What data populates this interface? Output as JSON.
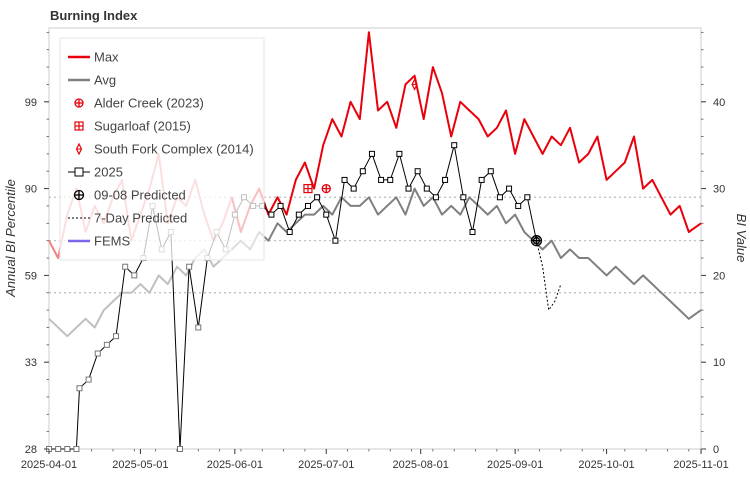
{
  "chart_data": {
    "type": "line",
    "title": "Burning Index",
    "y_left_label": "Annual BI Percentile",
    "y_right_label": "BI Value",
    "x_range": [
      "2025-04-01",
      "2025-11-01"
    ],
    "x_ticks": [
      "2025-04-01",
      "2025-05-01",
      "2025-06-01",
      "2025-07-01",
      "2025-08-01",
      "2025-09-01",
      "2025-10-01",
      "2025-11-01"
    ],
    "y_right_range": [
      0,
      48.5
    ],
    "y_right_ticks": [
      0,
      10,
      20,
      30,
      40
    ],
    "percentile_ticks": [
      {
        "label": "28",
        "bi": 0
      },
      {
        "label": "33",
        "bi": 10
      },
      {
        "label": "59",
        "bi": 20
      },
      {
        "label": "90",
        "bi": 30
      },
      {
        "label": "99",
        "bi": 40
      }
    ],
    "reference_lines_bi": [
      29,
      24,
      18
    ],
    "legend_placement": "top-left",
    "legend": [
      "Max",
      "Avg",
      "Alder Creek (2023)",
      "Sugarloaf (2015)",
      "South Fork Complex (2014)",
      "2025",
      "09-08 Predicted",
      "7-Day Predicted",
      "FEMS"
    ],
    "colors": {
      "max": "#e8000b",
      "max_faded": "#f08080",
      "avg": "#808080",
      "avg_faded": "#c0c0c0",
      "current": "#000000",
      "fems": "#7b68ee",
      "ref_line": "#bbbbbb"
    },
    "series": [
      {
        "name": "Max",
        "x": [
          "2025-04-01",
          "2025-04-04",
          "2025-04-07",
          "2025-04-10",
          "2025-04-13",
          "2025-04-16",
          "2025-04-19",
          "2025-04-22",
          "2025-04-25",
          "2025-04-28",
          "2025-05-01",
          "2025-05-04",
          "2025-05-07",
          "2025-05-10",
          "2025-05-13",
          "2025-05-16",
          "2025-05-19",
          "2025-05-22",
          "2025-05-25",
          "2025-05-28",
          "2025-05-31",
          "2025-06-03",
          "2025-06-06",
          "2025-06-09",
          "2025-06-12",
          "2025-06-15",
          "2025-06-18",
          "2025-06-21",
          "2025-06-24",
          "2025-06-27",
          "2025-06-30",
          "2025-07-03",
          "2025-07-06",
          "2025-07-09",
          "2025-07-12",
          "2025-07-15",
          "2025-07-18",
          "2025-07-21",
          "2025-07-24",
          "2025-07-27",
          "2025-07-30",
          "2025-08-02",
          "2025-08-05",
          "2025-08-08",
          "2025-08-11",
          "2025-08-14",
          "2025-08-17",
          "2025-08-20",
          "2025-08-23",
          "2025-08-26",
          "2025-08-29",
          "2025-09-01",
          "2025-09-04",
          "2025-09-07",
          "2025-09-10",
          "2025-09-13",
          "2025-09-16",
          "2025-09-19",
          "2025-09-22",
          "2025-09-25",
          "2025-09-28",
          "2025-10-01",
          "2025-10-04",
          "2025-10-07",
          "2025-10-10",
          "2025-10-13",
          "2025-10-16",
          "2025-10-19",
          "2025-10-22",
          "2025-10-25",
          "2025-10-28",
          "2025-11-01"
        ],
        "values": [
          24,
          22,
          27,
          30,
          25,
          28,
          26,
          29,
          31,
          24,
          27,
          30,
          34,
          26,
          29,
          28,
          31,
          27,
          24,
          26,
          29,
          25,
          28,
          30,
          27,
          29,
          27,
          31,
          33,
          30,
          35,
          38,
          36,
          40,
          38,
          48,
          39,
          40,
          37,
          42,
          43,
          38,
          44,
          41,
          36,
          40,
          39,
          38,
          36,
          37,
          39,
          34,
          38,
          36,
          34,
          36,
          35,
          37,
          33,
          34,
          36,
          31,
          32,
          33,
          36,
          30,
          31,
          29,
          27,
          28,
          25,
          26
        ]
      },
      {
        "name": "Avg",
        "x": [
          "2025-04-01",
          "2025-04-04",
          "2025-04-07",
          "2025-04-10",
          "2025-04-13",
          "2025-04-16",
          "2025-04-19",
          "2025-04-22",
          "2025-04-25",
          "2025-04-28",
          "2025-05-01",
          "2025-05-04",
          "2025-05-07",
          "2025-05-10",
          "2025-05-13",
          "2025-05-16",
          "2025-05-19",
          "2025-05-22",
          "2025-05-25",
          "2025-05-28",
          "2025-05-31",
          "2025-06-03",
          "2025-06-06",
          "2025-06-09",
          "2025-06-12",
          "2025-06-15",
          "2025-06-18",
          "2025-06-21",
          "2025-06-24",
          "2025-06-27",
          "2025-06-30",
          "2025-07-03",
          "2025-07-06",
          "2025-07-09",
          "2025-07-12",
          "2025-07-15",
          "2025-07-18",
          "2025-07-21",
          "2025-07-24",
          "2025-07-27",
          "2025-07-30",
          "2025-08-02",
          "2025-08-05",
          "2025-08-08",
          "2025-08-11",
          "2025-08-14",
          "2025-08-17",
          "2025-08-20",
          "2025-08-23",
          "2025-08-26",
          "2025-08-29",
          "2025-09-01",
          "2025-09-04",
          "2025-09-07",
          "2025-09-10",
          "2025-09-13",
          "2025-09-16",
          "2025-09-19",
          "2025-09-22",
          "2025-09-25",
          "2025-09-28",
          "2025-10-01",
          "2025-10-04",
          "2025-10-07",
          "2025-10-10",
          "2025-10-13",
          "2025-10-16",
          "2025-10-19",
          "2025-10-22",
          "2025-10-25",
          "2025-10-28",
          "2025-11-01"
        ],
        "values": [
          15,
          14,
          13,
          14,
          15,
          14,
          16,
          17,
          18,
          18,
          19,
          18,
          20,
          19,
          21,
          20,
          22,
          23,
          21,
          22,
          23,
          24,
          23,
          25,
          24,
          26,
          25,
          26,
          27,
          27,
          28,
          27,
          29,
          28,
          28,
          29,
          27,
          28,
          29,
          27,
          30,
          28,
          29,
          27,
          28,
          27,
          29,
          28,
          27,
          28,
          26,
          27,
          25,
          24,
          23,
          24,
          22,
          23,
          22,
          22,
          21,
          20,
          21,
          20,
          19,
          20,
          19,
          18,
          17,
          16,
          15,
          16
        ]
      },
      {
        "name": "2025",
        "x": [
          "2025-04-01",
          "2025-04-04",
          "2025-04-07",
          "2025-04-10",
          "2025-04-11",
          "2025-04-14",
          "2025-04-17",
          "2025-04-20",
          "2025-04-23",
          "2025-04-26",
          "2025-04-29",
          "2025-05-02",
          "2025-05-05",
          "2025-05-08",
          "2025-05-11",
          "2025-05-14",
          "2025-05-17",
          "2025-05-20",
          "2025-05-23",
          "2025-05-26",
          "2025-05-29",
          "2025-06-01",
          "2025-06-04",
          "2025-06-07",
          "2025-06-10",
          "2025-06-13",
          "2025-06-16",
          "2025-06-19",
          "2025-06-22",
          "2025-06-25",
          "2025-06-28",
          "2025-07-01",
          "2025-07-04",
          "2025-07-07",
          "2025-07-10",
          "2025-07-13",
          "2025-07-16",
          "2025-07-19",
          "2025-07-22",
          "2025-07-25",
          "2025-07-28",
          "2025-07-31",
          "2025-08-03",
          "2025-08-06",
          "2025-08-09",
          "2025-08-12",
          "2025-08-15",
          "2025-08-18",
          "2025-08-21",
          "2025-08-24",
          "2025-08-27",
          "2025-08-30",
          "2025-09-02",
          "2025-09-05",
          "2025-09-08"
        ],
        "values": [
          0,
          0,
          0,
          0,
          7,
          8,
          11,
          12,
          13,
          21,
          20,
          22,
          28,
          23,
          25,
          0,
          21,
          14,
          22,
          25,
          23,
          27,
          29,
          28,
          28,
          27,
          28,
          25,
          27,
          28,
          29,
          27,
          24,
          31,
          30,
          32,
          34,
          31,
          31,
          34,
          30,
          32,
          30,
          29,
          31,
          35,
          29,
          25,
          31,
          32,
          29,
          30,
          28,
          29,
          24
        ]
      },
      {
        "name": "Alder Creek (2023)",
        "x": [
          "2025-07-01"
        ],
        "values": [
          30
        ]
      },
      {
        "name": "Sugarloaf (2015)",
        "x": [
          "2025-06-25"
        ],
        "values": [
          30
        ]
      },
      {
        "name": "South Fork Complex (2014)",
        "x": [
          "2025-07-30"
        ],
        "values": [
          42
        ]
      },
      {
        "name": "09-08 Predicted",
        "x": [
          "2025-09-08"
        ],
        "values": [
          24
        ]
      },
      {
        "name": "7-Day Predicted",
        "x": [
          "2025-09-08",
          "2025-09-10",
          "2025-09-12",
          "2025-09-14",
          "2025-09-16"
        ],
        "values": [
          24,
          21,
          16,
          17,
          19
        ]
      }
    ]
  }
}
